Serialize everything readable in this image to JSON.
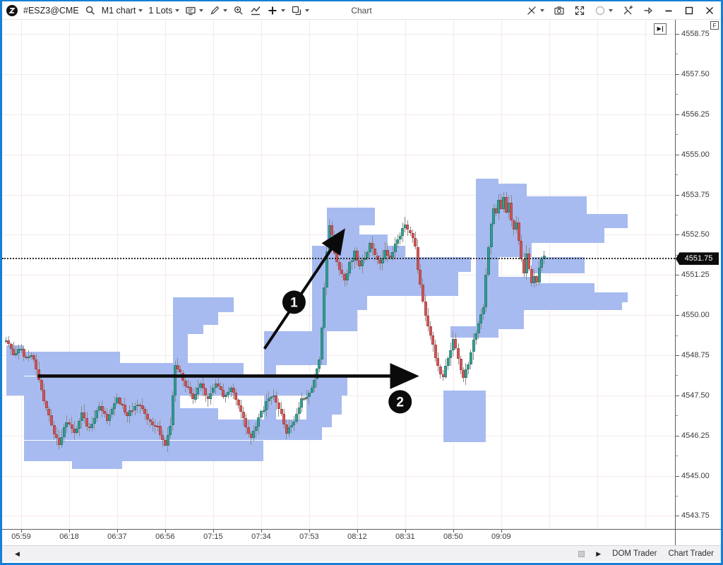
{
  "window": {
    "title": "Chart",
    "border_color": "#1680d6"
  },
  "toolbar": {
    "symbol": "#ESZ3@CME",
    "period": "M1 chart",
    "lots": "1 Lots",
    "left_icons": [
      "quantower-logo",
      "search-icon",
      "chart-type-dropdown",
      "lots-dropdown",
      "templates-icon",
      "pencil-icon",
      "zoom-icon",
      "indicators-icon",
      "plus-icon",
      "panels-icon"
    ],
    "right_icons": [
      "link-off-icon",
      "camera-icon",
      "fullscreen-icon",
      "link-circle-icon",
      "settings-tools-icon",
      "pin-icon",
      "minimize-icon",
      "maximize-icon",
      "close-icon"
    ]
  },
  "price_axis": {
    "corner_button": "F",
    "current_price_label": "4551.75"
  },
  "status_bar": {
    "tabs": [
      "DOM Trader",
      "Chart Trader"
    ]
  },
  "chart_data": {
    "type": "candlestick",
    "symbol": "#ESZ3@CME",
    "interval": "M1",
    "overlay": "volume-profile",
    "grid": true,
    "ylim": [
      4543.34,
      4559.19
    ],
    "xlim_minutes": [
      -7.54,
      258.8
    ],
    "current_price": 4551.75,
    "price_ticks": [
      4558.75,
      4557.5,
      4556.25,
      4555.0,
      4553.75,
      4552.5,
      4551.25,
      4550.0,
      4548.75,
      4547.5,
      4546.25,
      4545.0,
      4543.75
    ],
    "time_ticks": [
      {
        "m": 0,
        "label": "05:59"
      },
      {
        "m": 19,
        "label": "06:18"
      },
      {
        "m": 38,
        "label": "06:37"
      },
      {
        "m": 57,
        "label": "06:56"
      },
      {
        "m": 76,
        "label": "07:15"
      },
      {
        "m": 95,
        "label": "07:34"
      },
      {
        "m": 114,
        "label": "07:53"
      },
      {
        "m": 133,
        "label": "08:12"
      },
      {
        "m": 152,
        "label": "08:31"
      },
      {
        "m": 171,
        "label": "08:50"
      },
      {
        "m": 190,
        "label": "09:09"
      }
    ],
    "grid_extra_minutes": [
      209,
      228,
      247
    ],
    "price_waypoints": [
      [
        -6,
        4549.2
      ],
      [
        -3,
        4548.8
      ],
      [
        0,
        4548.95
      ],
      [
        2,
        4548.6
      ],
      [
        4,
        4548.8
      ],
      [
        6,
        4548.3
      ],
      [
        9,
        4547.35
      ],
      [
        12,
        4546.55
      ],
      [
        15,
        4545.95
      ],
      [
        18,
        4546.7
      ],
      [
        21,
        4546.35
      ],
      [
        24,
        4546.9
      ],
      [
        27,
        4546.45
      ],
      [
        31,
        4547.15
      ],
      [
        34,
        4546.7
      ],
      [
        38,
        4547.4
      ],
      [
        42,
        4546.9
      ],
      [
        46,
        4547.3
      ],
      [
        50,
        4546.75
      ],
      [
        54,
        4546.5
      ],
      [
        57,
        4545.95
      ],
      [
        59,
        4546.6
      ],
      [
        61,
        4548.45
      ],
      [
        63,
        4548.15
      ],
      [
        65,
        4547.85
      ],
      [
        68,
        4547.4
      ],
      [
        71,
        4547.8
      ],
      [
        74,
        4547.35
      ],
      [
        77,
        4547.9
      ],
      [
        80,
        4547.45
      ],
      [
        83,
        4547.7
      ],
      [
        86,
        4547.15
      ],
      [
        89,
        4546.5
      ],
      [
        91,
        4546.15
      ],
      [
        94,
        4546.8
      ],
      [
        97,
        4547.25
      ],
      [
        100,
        4547.5
      ],
      [
        103,
        4546.9
      ],
      [
        105,
        4546.35
      ],
      [
        108,
        4546.7
      ],
      [
        111,
        4547.35
      ],
      [
        114,
        4547.6
      ],
      [
        116,
        4547.95
      ],
      [
        118,
        4548.6
      ],
      [
        119,
        4549.6
      ],
      [
        120,
        4550.8
      ],
      [
        121,
        4551.9
      ],
      [
        122,
        4552.85
      ],
      [
        123,
        4552.45
      ],
      [
        124,
        4551.9
      ],
      [
        126,
        4551.35
      ],
      [
        128,
        4551.05
      ],
      [
        130,
        4551.6
      ],
      [
        132,
        4551.95
      ],
      [
        134,
        4551.5
      ],
      [
        136,
        4551.8
      ],
      [
        138,
        4552.2
      ],
      [
        140,
        4551.9
      ],
      [
        142,
        4551.6
      ],
      [
        144,
        4552.0
      ],
      [
        146,
        4551.7
      ],
      [
        148,
        4552.15
      ],
      [
        150,
        4552.5
      ],
      [
        152,
        4552.85
      ],
      [
        154,
        4552.6
      ],
      [
        156,
        4552.15
      ],
      [
        157,
        4551.4
      ],
      [
        159,
        4550.4
      ],
      [
        161,
        4549.6
      ],
      [
        163,
        4549.0
      ],
      [
        165,
        4548.35
      ],
      [
        167,
        4548.0
      ],
      [
        169,
        4548.7
      ],
      [
        171,
        4549.2
      ],
      [
        173,
        4548.6
      ],
      [
        175,
        4548.0
      ],
      [
        177,
        4548.5
      ],
      [
        179,
        4549.2
      ],
      [
        181,
        4549.7
      ],
      [
        183,
        4550.3
      ],
      [
        184,
        4551.2
      ],
      [
        185,
        4552.1
      ],
      [
        186,
        4552.9
      ],
      [
        187,
        4553.4
      ],
      [
        188,
        4553.1
      ],
      [
        189,
        4553.65
      ],
      [
        190,
        4553.3
      ],
      [
        191,
        4553.6
      ],
      [
        192,
        4553.2
      ],
      [
        193,
        4553.5
      ],
      [
        194,
        4553.0
      ],
      [
        195,
        4552.6
      ],
      [
        196,
        4552.9
      ],
      [
        197,
        4552.3
      ],
      [
        198,
        4551.8
      ],
      [
        199,
        4551.3
      ],
      [
        200,
        4551.9
      ],
      [
        201,
        4551.45
      ],
      [
        202,
        4550.95
      ],
      [
        203,
        4551.2
      ],
      [
        204,
        4551.05
      ],
      [
        205,
        4551.4
      ],
      [
        206,
        4551.65
      ],
      [
        207,
        4551.85
      ]
    ],
    "profiles": [
      [
        -6,
        1,
        4549.05,
        4547.55
      ],
      [
        1,
        39,
        4548.85,
        4548.1
      ],
      [
        39,
        88,
        4548.5,
        4548.1
      ],
      [
        -6,
        129,
        4548.1,
        4547.5
      ],
      [
        1,
        63,
        4547.5,
        4547.1
      ],
      [
        1,
        78,
        4547.1,
        4546.75
      ],
      [
        1,
        119,
        4546.75,
        4546.1
      ],
      [
        1,
        96,
        4546.1,
        4545.45
      ],
      [
        20,
        40,
        4545.45,
        4545.2
      ],
      [
        60,
        84,
        4550.55,
        4550.1
      ],
      [
        60,
        78,
        4550.1,
        4549.7
      ],
      [
        60,
        72,
        4549.7,
        4549.4
      ],
      [
        60,
        66,
        4549.4,
        4548.5
      ],
      [
        96,
        101,
        4549.3,
        4546.7
      ],
      [
        96,
        121,
        4549.5,
        4548.45
      ],
      [
        121,
        140,
        4553.35,
        4552.8
      ],
      [
        121,
        134,
        4552.8,
        4552.5
      ],
      [
        121,
        145,
        4552.5,
        4552.15
      ],
      [
        115,
        152,
        4552.15,
        4551.8
      ],
      [
        115,
        178,
        4551.8,
        4551.35
      ],
      [
        137,
        173,
        4551.35,
        4550.6
      ],
      [
        115,
        137,
        4551.35,
        4550.15
      ],
      [
        115,
        133,
        4550.15,
        4549.5
      ],
      [
        113,
        127,
        4547.6,
        4546.9
      ],
      [
        113,
        123,
        4546.9,
        4546.5
      ],
      [
        151,
        171,
        4551.35,
        4551.0
      ],
      [
        167,
        184,
        4547.65,
        4546.05
      ],
      [
        180,
        189,
        4554.25,
        4549.55
      ],
      [
        189,
        200,
        4554.1,
        4553.7
      ],
      [
        189,
        224,
        4553.7,
        4553.15
      ],
      [
        189,
        240,
        4553.15,
        4552.7
      ],
      [
        189,
        231,
        4552.7,
        4552.25
      ],
      [
        189,
        202,
        4552.25,
        4551.8
      ],
      [
        202,
        223,
        4551.8,
        4551.3
      ],
      [
        189,
        204,
        4551.2,
        4551.0
      ],
      [
        189,
        227,
        4551.0,
        4550.7
      ],
      [
        189,
        240,
        4550.7,
        4550.4
      ],
      [
        189,
        238,
        4550.4,
        4550.15
      ],
      [
        189,
        199,
        4550.15,
        4549.55
      ],
      [
        170,
        189,
        4549.65,
        4549.3
      ]
    ],
    "annotations": [
      {
        "type": "arrow",
        "label": "1",
        "from": [
          96.3,
          4548.95
        ],
        "to": [
          127,
          4552.55
        ],
        "label_at": [
          108,
          4550.4
        ],
        "width": 4
      },
      {
        "type": "arrow",
        "label": "2",
        "from": [
          6.5,
          4548.1
        ],
        "to": [
          155,
          4548.1
        ],
        "label_at": [
          150,
          4547.3
        ],
        "width": 4.6
      }
    ],
    "colors": {
      "up": "#2e9c8e",
      "down": "#d05050",
      "profile": "#a7bbf1",
      "wick": "#8a8a8a",
      "grid": "#f4e9ea",
      "annotation": "#0b0b0b"
    }
  }
}
